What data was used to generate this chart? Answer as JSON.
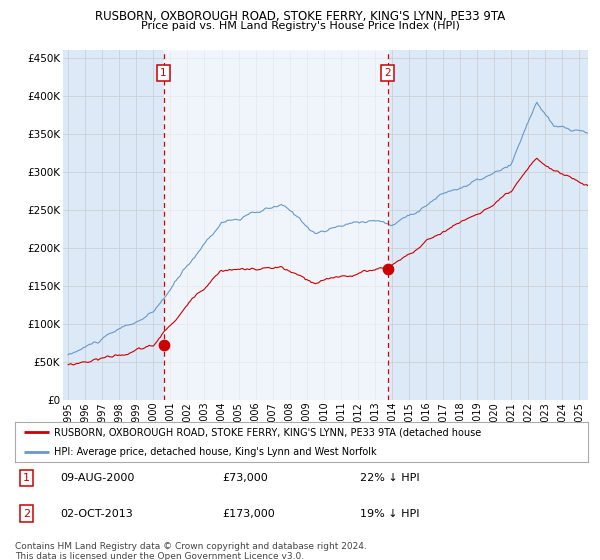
{
  "title1": "RUSBORN, OXBOROUGH ROAD, STOKE FERRY, KING'S LYNN, PE33 9TA",
  "title2": "Price paid vs. HM Land Registry's House Price Index (HPI)",
  "legend_red": "RUSBORN, OXBOROUGH ROAD, STOKE FERRY, KING'S LYNN, PE33 9TA (detached house",
  "legend_blue": "HPI: Average price, detached house, King's Lynn and West Norfolk",
  "sale1_date": "09-AUG-2000",
  "sale1_price": "£73,000",
  "sale1_hpi": "22% ↓ HPI",
  "sale2_date": "02-OCT-2013",
  "sale2_price": "£173,000",
  "sale2_hpi": "19% ↓ HPI",
  "footer": "Contains HM Land Registry data © Crown copyright and database right 2024.\nThis data is licensed under the Open Government Licence v3.0.",
  "ylim": [
    0,
    460000
  ],
  "yticks": [
    0,
    50000,
    100000,
    150000,
    200000,
    250000,
    300000,
    350000,
    400000,
    450000
  ],
  "background_color": "#ffffff",
  "plot_bg_color": "#dce9f7",
  "grid_color": "#cccccc",
  "red_color": "#cc0000",
  "blue_color": "#6699cc",
  "vline_color": "#dd0000",
  "shaded_start": 2000.6,
  "shaded_end": 2013.75,
  "sale1_x": 2000.6,
  "sale1_y": 73000,
  "sale2_x": 2013.75,
  "sale2_y": 173000,
  "xmin": 1994.7,
  "xmax": 2025.5
}
